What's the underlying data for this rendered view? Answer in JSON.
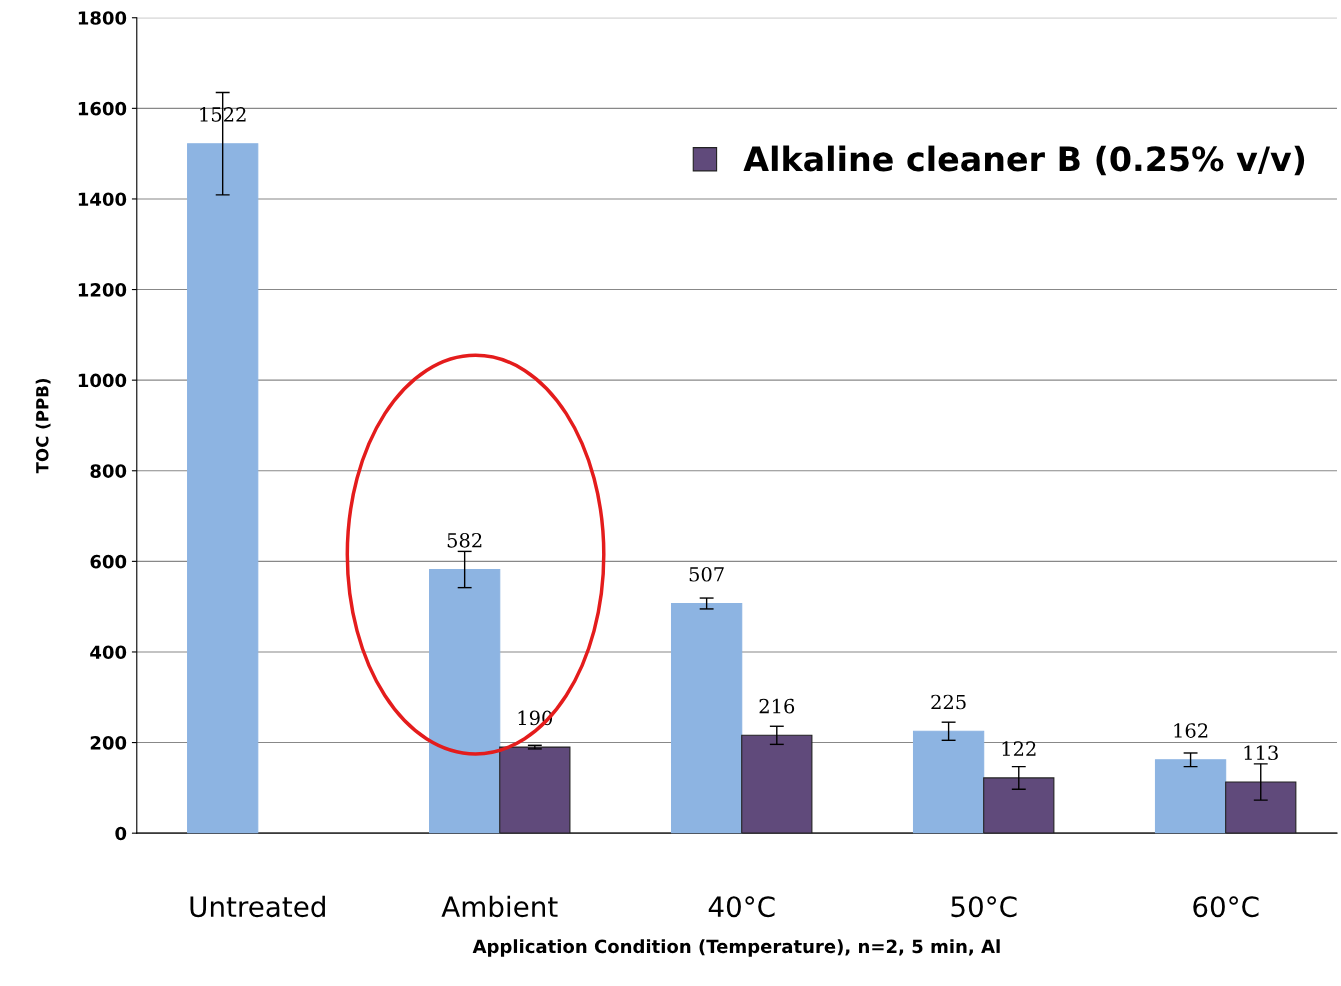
{
  "chart_data": {
    "type": "bar",
    "xlabel": "Application Condition (Temperature), n=2, 5 min, Al",
    "ylabel": "TOC (PPB)",
    "categories": [
      "Untreated",
      "Ambient",
      "40°C",
      "50°C",
      "60°C"
    ],
    "series": [
      {
        "color": "#8db4e2",
        "values": [
          1522,
          582,
          507,
          225,
          162
        ],
        "errors": [
          113,
          40,
          12,
          20,
          15
        ]
      },
      {
        "name": "Alkaline cleaner B (0.25% v/v)",
        "color": "#604a7b",
        "values": [
          null,
          190,
          216,
          122,
          113
        ],
        "errors": [
          null,
          4,
          20,
          25,
          40
        ]
      }
    ],
    "ylim": [
      0,
      1800
    ],
    "yticks": [
      0,
      200,
      400,
      600,
      800,
      1000,
      1200,
      1400,
      1600,
      1800
    ],
    "grid": "y",
    "legend": "top right",
    "data_labels": true
  }
}
